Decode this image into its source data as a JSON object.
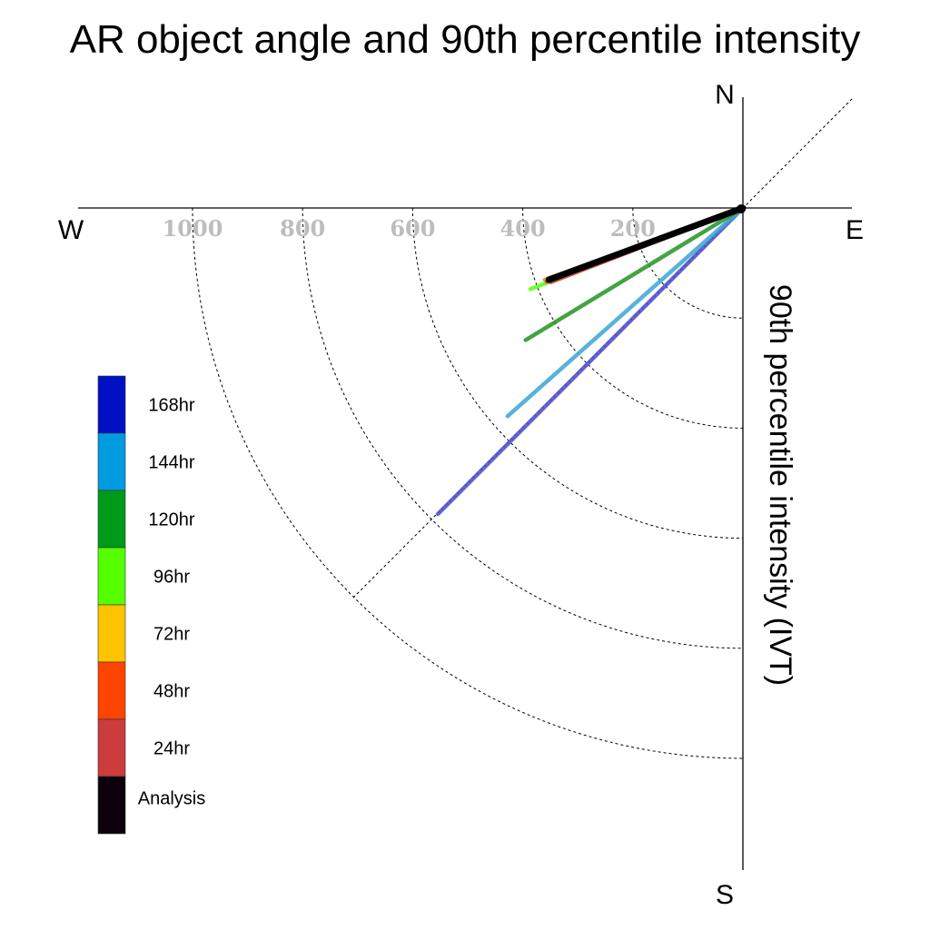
{
  "chart_data": {
    "type": "polar-vector",
    "title": "AR object angle and 90th percentile intensity",
    "ylabel": "90th percentile intensity (IVT)",
    "directions": {
      "north": "N",
      "south": "S",
      "east": "E",
      "west": "W"
    },
    "radial_ticks": [
      "200",
      "400",
      "600",
      "800",
      "1000"
    ],
    "radial_tick_values": [
      200,
      400,
      600,
      800,
      1000
    ],
    "rmax": 1200,
    "grid": true,
    "legend_position": "left",
    "series": [
      {
        "name": "168hr",
        "color": "#5050c8",
        "angle_deg_below_west": 45.1,
        "intensity": 785
      },
      {
        "name": "144hr",
        "color": "#3fa9d6",
        "angle_deg_below_west": 41.5,
        "intensity": 571
      },
      {
        "name": "120hr",
        "color": "#2a962a",
        "angle_deg_below_west": 31.3,
        "intensity": 462
      },
      {
        "name": "96hr",
        "color": "#5cff1a",
        "angle_deg_below_west": 20.9,
        "intensity": 413
      },
      {
        "name": "72hr",
        "color": "#c8a018",
        "angle_deg_below_west": 19.9,
        "intensity": 383
      },
      {
        "name": "48hr",
        "color": "#e84040",
        "angle_deg_below_west": 20.6,
        "intensity": 381
      },
      {
        "name": "24hr",
        "color": "#c83c3c",
        "angle_deg_below_west": 21.1,
        "intensity": 374
      },
      {
        "name": "Analysis",
        "color": "#000000",
        "angle_deg_below_west": 20.3,
        "intensity": 376
      }
    ],
    "legend": [
      {
        "label": "168hr",
        "color": "#0011c4"
      },
      {
        "label": "144hr",
        "color": "#009be0"
      },
      {
        "label": "120hr",
        "color": "#009a1a"
      },
      {
        "label": "96hr",
        "color": "#56ff00"
      },
      {
        "label": "72hr",
        "color": "#ffc400"
      },
      {
        "label": "48hr",
        "color": "#ff4400"
      },
      {
        "label": "24hr",
        "color": "#cc3c3c"
      },
      {
        "label": "Analysis",
        "color": "#0d000d"
      }
    ]
  }
}
